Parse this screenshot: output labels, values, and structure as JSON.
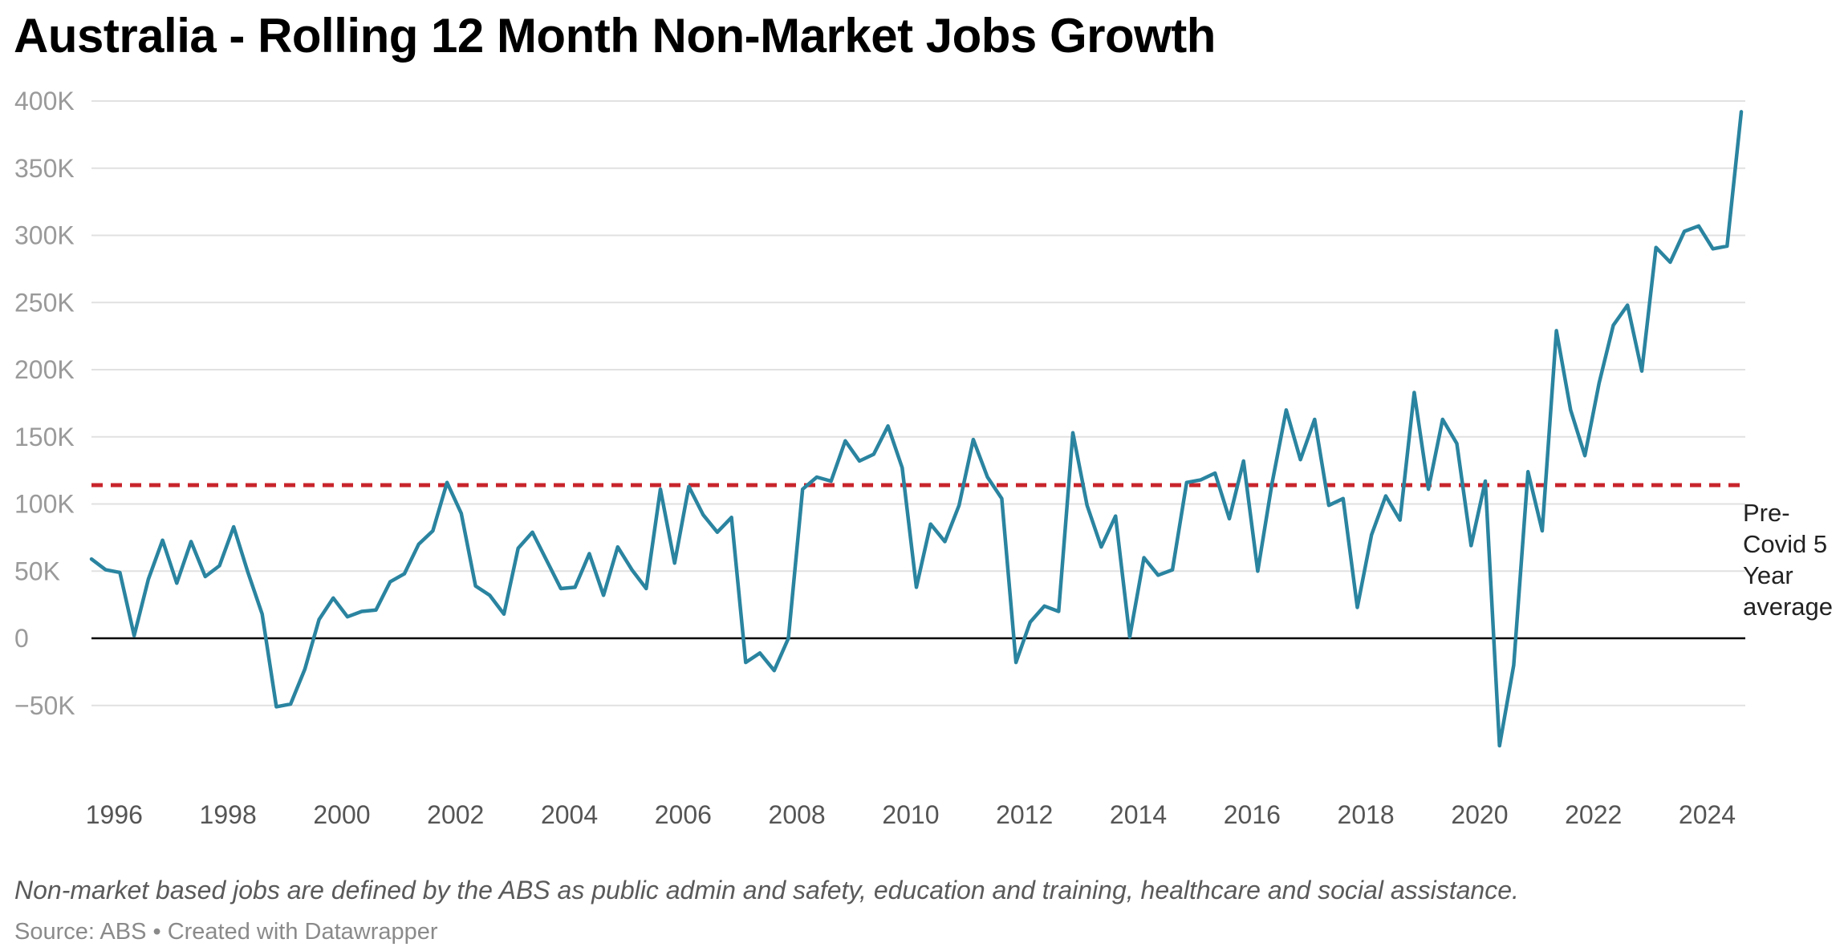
{
  "chart_data": {
    "type": "line",
    "title": "Australia - Rolling 12 Month Non-Market Jobs Growth",
    "xlabel": "",
    "ylabel": "",
    "x_range": [
      1995.6,
      2024.67
    ],
    "ylim": [
      -80000,
      400000
    ],
    "y_ticks": [
      {
        "value": 400000,
        "label": "400K"
      },
      {
        "value": 350000,
        "label": "350K"
      },
      {
        "value": 300000,
        "label": "300K"
      },
      {
        "value": 250000,
        "label": "250K"
      },
      {
        "value": 200000,
        "label": "200K"
      },
      {
        "value": 150000,
        "label": "150K"
      },
      {
        "value": 100000,
        "label": "100K"
      },
      {
        "value": 50000,
        "label": "50K"
      },
      {
        "value": 0,
        "label": "0"
      },
      {
        "value": -50000,
        "label": "−50K"
      }
    ],
    "x_ticks": [
      {
        "value": 1996,
        "label": "1996"
      },
      {
        "value": 1998,
        "label": "1998"
      },
      {
        "value": 2000,
        "label": "2000"
      },
      {
        "value": 2002,
        "label": "2002"
      },
      {
        "value": 2004,
        "label": "2004"
      },
      {
        "value": 2006,
        "label": "2006"
      },
      {
        "value": 2008,
        "label": "2008"
      },
      {
        "value": 2010,
        "label": "2010"
      },
      {
        "value": 2012,
        "label": "2012"
      },
      {
        "value": 2014,
        "label": "2014"
      },
      {
        "value": 2016,
        "label": "2016"
      },
      {
        "value": 2018,
        "label": "2018"
      },
      {
        "value": 2020,
        "label": "2020"
      },
      {
        "value": 2022,
        "label": "2022"
      },
      {
        "value": 2024,
        "label": "2024"
      }
    ],
    "series": [
      {
        "name": "Rolling 12 month non-market jobs growth",
        "color": "#2a84a0",
        "start": 1995.6,
        "step": 0.25,
        "values": [
          59000,
          51000,
          49000,
          2000,
          44000,
          73000,
          41000,
          72000,
          46000,
          54000,
          83000,
          49000,
          18000,
          -51000,
          -49000,
          -23000,
          14000,
          30000,
          16000,
          20000,
          21000,
          42000,
          48000,
          70000,
          80000,
          116000,
          93000,
          39000,
          32000,
          18000,
          67000,
          79000,
          58000,
          37000,
          38000,
          63000,
          32000,
          68000,
          51000,
          37000,
          111000,
          56000,
          113000,
          92000,
          79000,
          90000,
          -18000,
          -11000,
          -24000,
          0,
          111000,
          120000,
          117000,
          147000,
          132000,
          137000,
          158000,
          127000,
          38000,
          85000,
          72000,
          99000,
          148000,
          120000,
          104000,
          -18000,
          12000,
          24000,
          20000,
          153000,
          99000,
          68000,
          91000,
          1000,
          60000,
          47000,
          51000,
          116000,
          118000,
          123000,
          89000,
          132000,
          50000,
          115000,
          170000,
          133000,
          163000,
          99000,
          104000,
          23000,
          77000,
          106000,
          88000,
          183000,
          111000,
          163000,
          145000,
          69000,
          117000,
          -80000,
          -20000,
          124000,
          80000,
          229000,
          170000,
          136000,
          190000,
          233000,
          248000,
          199000,
          291000,
          280000,
          303000,
          307000,
          290000,
          292000,
          392000
        ]
      }
    ],
    "reference_line": {
      "value": 114000,
      "label_lines": [
        "Pre-",
        "Covid 5",
        "Year",
        "average"
      ],
      "color": "#c8242b"
    }
  },
  "note": "Non-market based jobs are defined by the ABS as public admin and safety, education and training, healthcare and social assistance.",
  "source": "Source: ABS • Created with Datawrapper",
  "colors": {
    "line": "#2a84a0",
    "reference": "#c8242b",
    "grid": "#e1e1e1",
    "zero_line": "#000000"
  }
}
